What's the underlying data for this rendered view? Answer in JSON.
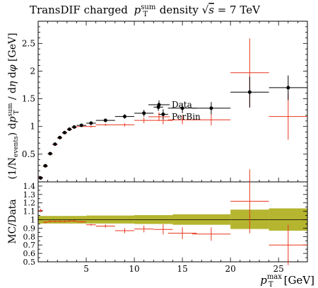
{
  "chart_data": [
    {
      "type": "scatter",
      "title": "TransDIF charged",
      "title_math": "p_T^sum density √s = 7 TeV",
      "ylabel": "(1/N_events) dp_T^sum / dη dφ [GeV]",
      "xlim": [
        0,
        28
      ],
      "ylim": [
        0,
        2.9
      ],
      "yticks": [
        "0.5",
        "1",
        "1.5",
        "2",
        "2.5"
      ],
      "legend_position": "upper-middle",
      "series": [
        {
          "name": "Data",
          "color": "#000000",
          "points": [
            {
              "x": 0.25,
              "xerr": 0.25,
              "y": 0.07,
              "yerr": 0.01
            },
            {
              "x": 0.75,
              "xerr": 0.25,
              "y": 0.29,
              "yerr": 0.01
            },
            {
              "x": 1.25,
              "xerr": 0.25,
              "y": 0.51,
              "yerr": 0.01
            },
            {
              "x": 1.75,
              "xerr": 0.25,
              "y": 0.68,
              "yerr": 0.01
            },
            {
              "x": 2.25,
              "xerr": 0.25,
              "y": 0.8,
              "yerr": 0.01
            },
            {
              "x": 2.75,
              "xerr": 0.25,
              "y": 0.89,
              "yerr": 0.01
            },
            {
              "x": 3.25,
              "xerr": 0.25,
              "y": 0.95,
              "yerr": 0.01
            },
            {
              "x": 3.75,
              "xerr": 0.25,
              "y": 0.99,
              "yerr": 0.01
            },
            {
              "x": 4.5,
              "xerr": 0.5,
              "y": 1.02,
              "yerr": 0.01
            },
            {
              "x": 5.5,
              "xerr": 0.5,
              "y": 1.06,
              "yerr": 0.02
            },
            {
              "x": 7,
              "xerr": 1,
              "y": 1.11,
              "yerr": 0.03
            },
            {
              "x": 9,
              "xerr": 1,
              "y": 1.18,
              "yerr": 0.04
            },
            {
              "x": 11,
              "xerr": 1,
              "y": 1.24,
              "yerr": 0.06
            },
            {
              "x": 12.5,
              "xerr": 0.5,
              "y": 1.35,
              "yerr": 0.07
            },
            {
              "x": 13,
              "xerr": 0.5,
              "y": 1.22,
              "yerr": 0.09
            },
            {
              "x": 15,
              "xerr": 1.5,
              "y": 1.33,
              "yerr": 0.09
            },
            {
              "x": 18,
              "xerr": 2,
              "y": 1.33,
              "yerr": 0.11
            },
            {
              "x": 22,
              "xerr": 2,
              "y": 1.62,
              "yerr": 0.28
            },
            {
              "x": 26,
              "xerr": 2,
              "y": 1.7,
              "yerr": 0.22
            }
          ]
        },
        {
          "name": "PerBin",
          "color": "#e8371f",
          "points": [
            {
              "x": 0.25,
              "xerr": 0.25,
              "y": 0.08,
              "yerr": 0.01
            },
            {
              "x": 0.75,
              "xerr": 0.25,
              "y": 0.28,
              "yerr": 0.01
            },
            {
              "x": 1.25,
              "xerr": 0.25,
              "y": 0.5,
              "yerr": 0.01
            },
            {
              "x": 1.75,
              "xerr": 0.25,
              "y": 0.67,
              "yerr": 0.01
            },
            {
              "x": 2.25,
              "xerr": 0.25,
              "y": 0.79,
              "yerr": 0.01
            },
            {
              "x": 2.75,
              "xerr": 0.25,
              "y": 0.88,
              "yerr": 0.01
            },
            {
              "x": 3.25,
              "xerr": 0.25,
              "y": 0.94,
              "yerr": 0.01
            },
            {
              "x": 3.75,
              "xerr": 0.25,
              "y": 0.98,
              "yerr": 0.01
            },
            {
              "x": 4.5,
              "xerr": 0.5,
              "y": 1.0,
              "yerr": 0.01
            },
            {
              "x": 5.5,
              "xerr": 0.5,
              "y": 1.0,
              "yerr": 0.02
            },
            {
              "x": 7,
              "xerr": 1,
              "y": 1.03,
              "yerr": 0.02
            },
            {
              "x": 9,
              "xerr": 1,
              "y": 1.03,
              "yerr": 0.03
            },
            {
              "x": 11,
              "xerr": 1,
              "y": 1.11,
              "yerr": 0.05
            },
            {
              "x": 13,
              "xerr": 1,
              "y": 1.11,
              "yerr": 0.07
            },
            {
              "x": 15,
              "xerr": 1.5,
              "y": 1.12,
              "yerr": 0.08
            },
            {
              "x": 18,
              "xerr": 2,
              "y": 1.12,
              "yerr": 0.1
            },
            {
              "x": 22,
              "xerr": 2,
              "y": 1.97,
              "yerr": 0.62
            },
            {
              "x": 26,
              "xerr": 2,
              "y": 1.18,
              "yerr": 0.42
            }
          ]
        }
      ]
    },
    {
      "type": "scatter",
      "ylabel": "MC/Data",
      "xlabel": "p_T^max [GeV]",
      "xlim": [
        0,
        28
      ],
      "ylim": [
        0.5,
        1.45
      ],
      "xticks": [
        "5",
        "10",
        "15",
        "20",
        "25"
      ],
      "yticks": [
        "0.5",
        "0.6",
        "0.7",
        "0.8",
        "0.9",
        "1",
        "1.1",
        "1.2",
        "1.3",
        "1.4"
      ],
      "band_color": "#b5b530",
      "band": [
        {
          "x0": 0,
          "x1": 5,
          "lo": 0.955,
          "hi": 1.045
        },
        {
          "x0": 5,
          "x1": 10,
          "lo": 0.955,
          "hi": 1.05
        },
        {
          "x0": 10,
          "x1": 14,
          "lo": 0.95,
          "hi": 1.055
        },
        {
          "x0": 14,
          "x1": 20,
          "lo": 0.94,
          "hi": 1.065
        },
        {
          "x0": 20,
          "x1": 24,
          "lo": 0.89,
          "hi": 1.12
        },
        {
          "x0": 24,
          "x1": 28,
          "lo": 0.87,
          "hi": 1.135
        }
      ],
      "series": [
        {
          "name": "PerBin",
          "color": "#e8371f",
          "points": [
            {
              "x": 0.25,
              "xerr": 0.25,
              "y": 1.11,
              "yerr": 0.02
            },
            {
              "x": 0.75,
              "xerr": 0.25,
              "y": 0.97,
              "yerr": 0.01
            },
            {
              "x": 1.25,
              "xerr": 0.25,
              "y": 0.98,
              "yerr": 0.01
            },
            {
              "x": 1.75,
              "xerr": 0.25,
              "y": 0.98,
              "yerr": 0.01
            },
            {
              "x": 2.25,
              "xerr": 0.25,
              "y": 0.98,
              "yerr": 0.01
            },
            {
              "x": 2.75,
              "xerr": 0.25,
              "y": 0.98,
              "yerr": 0.01
            },
            {
              "x": 3.25,
              "xerr": 0.25,
              "y": 0.985,
              "yerr": 0.01
            },
            {
              "x": 3.75,
              "xerr": 0.25,
              "y": 0.985,
              "yerr": 0.01
            },
            {
              "x": 4.5,
              "xerr": 0.5,
              "y": 0.975,
              "yerr": 0.01
            },
            {
              "x": 5.5,
              "xerr": 0.5,
              "y": 0.94,
              "yerr": 0.01
            },
            {
              "x": 7,
              "xerr": 1,
              "y": 0.925,
              "yerr": 0.02
            },
            {
              "x": 9,
              "xerr": 1,
              "y": 0.87,
              "yerr": 0.03
            },
            {
              "x": 11,
              "xerr": 1,
              "y": 0.89,
              "yerr": 0.04
            },
            {
              "x": 13,
              "xerr": 1,
              "y": 0.885,
              "yerr": 0.06
            },
            {
              "x": 15,
              "xerr": 1.5,
              "y": 0.84,
              "yerr": 0.07
            },
            {
              "x": 18,
              "xerr": 2,
              "y": 0.83,
              "yerr": 0.08
            },
            {
              "x": 22,
              "xerr": 2,
              "y": 1.22,
              "yerr": 0.38
            },
            {
              "x": 26,
              "xerr": 2,
              "y": 0.7,
              "yerr": 0.24
            }
          ]
        }
      ]
    }
  ]
}
